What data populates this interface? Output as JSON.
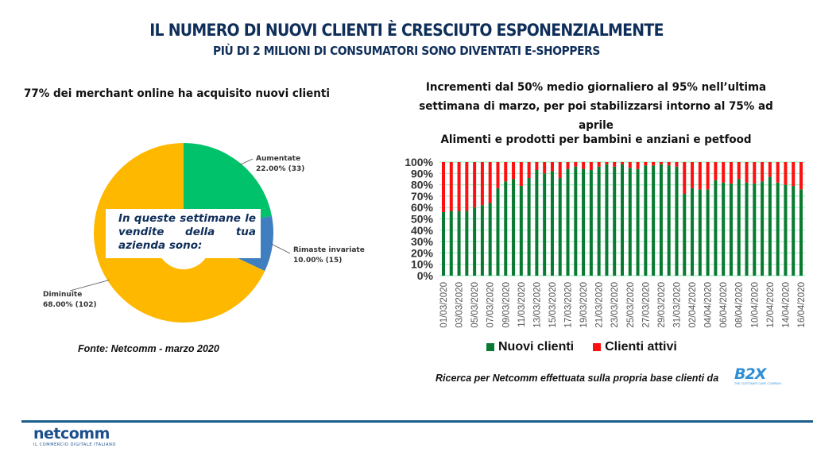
{
  "header": {
    "title": "IL NUMERO DI NUOVI CLIENTI È CRESCIUTO ESPONENZIALMENTE",
    "subtitle": "PIÙ DI 2 MILIONI DI CONSUMATORI SONO DIVENTATI  E-SHOPPERS"
  },
  "left": {
    "heading": "77% dei merchant online ha acquisito nuovi clienti",
    "question": "In queste settimane le vendite della tua azienda sono:",
    "source": "Fonte: Netcomm - marzo 2020"
  },
  "right": {
    "heading_line1": "Incrementi dal 50% medio giornaliero al 95% nell’ultima",
    "heading_line2": "settimana di marzo, per poi stabilizzarsi intorno al 75% ad aprile",
    "research_note": "Ricerca per Netcomm effettuata sulla propria base clienti da",
    "b2x_logo": "B2X",
    "b2x_tagline": "THE CUSTOMER CARE COMPANY"
  },
  "footer": {
    "logo_text": "netcomm",
    "logo_tagline": "IL COMMERCIO DIGITALE ITALIANO"
  },
  "chart_data": [
    {
      "type": "pie",
      "title": "In queste settimane le vendite della tua azienda sono:",
      "slices": [
        {
          "label": "Aumentate",
          "percent": 22.0,
          "count": 33,
          "display": "22.00% (33)",
          "color": "#00c26a"
        },
        {
          "label": "Rimaste invariate",
          "percent": 10.0,
          "count": 15,
          "display": "10.00% (15)",
          "color": "#3f7fc0"
        },
        {
          "label": "Diminuite",
          "percent": 68.0,
          "count": 102,
          "display": "68.00% (102)",
          "color": "#ffb800"
        }
      ]
    },
    {
      "type": "bar",
      "stacked": "percent",
      "title": "Alimenti e prodotti per bambini e anziani e petfood",
      "ylim": [
        0,
        100
      ],
      "yticks": [
        "0%",
        "10%",
        "20%",
        "30%",
        "40%",
        "50%",
        "60%",
        "70%",
        "80%",
        "90%",
        "100%"
      ],
      "grid": true,
      "legend_position": "bottom",
      "x": [
        "01/03/2020",
        "02/03/2020",
        "03/03/2020",
        "04/03/2020",
        "05/03/2020",
        "06/03/2020",
        "07/03/2020",
        "08/03/2020",
        "09/03/2020",
        "10/03/2020",
        "11/03/2020",
        "12/03/2020",
        "13/03/2020",
        "14/03/2020",
        "15/03/2020",
        "16/03/2020",
        "17/03/2020",
        "18/03/2020",
        "19/03/2020",
        "20/03/2020",
        "21/03/2020",
        "22/03/2020",
        "23/03/2020",
        "24/03/2020",
        "25/03/2020",
        "26/03/2020",
        "27/03/2020",
        "28/03/2020",
        "29/03/2020",
        "30/03/2020",
        "31/03/2020",
        "01/04/2020",
        "02/04/2020",
        "03/04/2020",
        "04/04/2020",
        "05/04/2020",
        "06/04/2020",
        "07/04/2020",
        "08/04/2020",
        "09/04/2020",
        "10/04/2020",
        "11/04/2020",
        "12/04/2020",
        "13/04/2020",
        "14/04/2020",
        "15/04/2020",
        "16/04/2020"
      ],
      "xtick_labels": [
        "01/03/2020",
        "03/03/2020",
        "05/03/2020",
        "07/03/2020",
        "09/03/2020",
        "11/03/2020",
        "13/03/2020",
        "15/03/2020",
        "17/03/2020",
        "19/03/2020",
        "21/03/2020",
        "23/03/2020",
        "25/03/2020",
        "27/03/2020",
        "29/03/2020",
        "31/03/2020",
        "02/04/2020",
        "04/04/2020",
        "06/04/2020",
        "08/04/2020",
        "10/04/2020",
        "12/04/2020",
        "14/04/2020",
        "16/04/2020"
      ],
      "series": [
        {
          "name": "Nuovi clienti",
          "color": "#0a7a32",
          "values": [
            56,
            57,
            57,
            57,
            60,
            62,
            64,
            77,
            83,
            85,
            79,
            86,
            93,
            90,
            92,
            86,
            94,
            96,
            94,
            93,
            96,
            98,
            96,
            98,
            95,
            94,
            97,
            97,
            98,
            97,
            96,
            72,
            77,
            76,
            76,
            84,
            82,
            81,
            85,
            82,
            81,
            83,
            87,
            82,
            80,
            79,
            76
          ]
        },
        {
          "name": "Clienti attivi",
          "color": "#ff1010",
          "values": [
            44,
            43,
            43,
            43,
            40,
            38,
            36,
            23,
            17,
            15,
            21,
            14,
            7,
            10,
            8,
            14,
            6,
            4,
            6,
            7,
            4,
            2,
            4,
            2,
            5,
            6,
            3,
            3,
            2,
            3,
            4,
            28,
            23,
            24,
            24,
            16,
            18,
            19,
            15,
            18,
            19,
            17,
            13,
            18,
            20,
            21,
            24
          ]
        }
      ]
    }
  ]
}
